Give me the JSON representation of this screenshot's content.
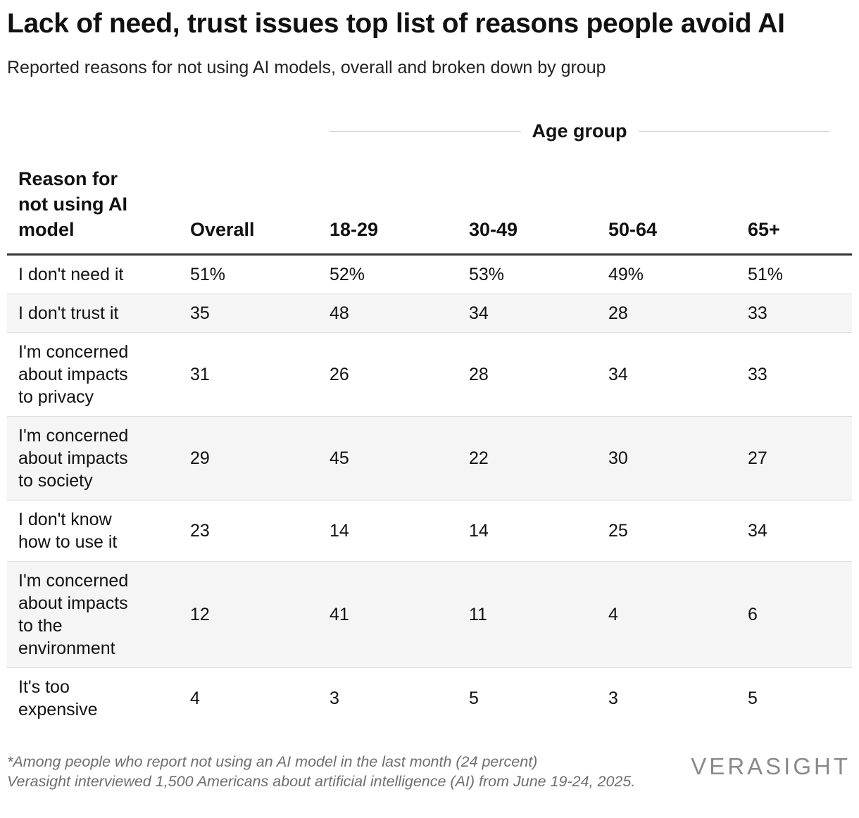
{
  "title": "Lack of need, trust issues top list of reasons people avoid AI",
  "subtitle": "Reported reasons for not using AI models, overall and broken down by group",
  "group_label": "Age group",
  "footnote_line1": "*Among people who report not using an AI model in the last month (24 percent)",
  "footnote_line2": "Verasight interviewed 1,500 Americans about artificial intelligence (AI) from June 19-24, 2025.",
  "logo_text": "VERASIGHT",
  "chart_data": {
    "type": "table",
    "columns": [
      "Reason for\nnot using AI\nmodel",
      "Overall",
      "18-29",
      "30-49",
      "50-64",
      "65+"
    ],
    "rows": [
      {
        "reason": "I don't need it",
        "values": [
          "51%",
          "52%",
          "53%",
          "49%",
          "51%"
        ]
      },
      {
        "reason": "I don't trust it",
        "values": [
          "35",
          "48",
          "34",
          "28",
          "33"
        ]
      },
      {
        "reason": "I'm concerned\nabout impacts\nto privacy",
        "values": [
          "31",
          "26",
          "28",
          "34",
          "33"
        ]
      },
      {
        "reason": "I'm concerned\nabout impacts\nto society",
        "values": [
          "29",
          "45",
          "22",
          "30",
          "27"
        ]
      },
      {
        "reason": "I don't know\nhow to use it",
        "values": [
          "23",
          "14",
          "14",
          "25",
          "34"
        ]
      },
      {
        "reason": "I'm concerned\nabout impacts\nto the\nenvironment",
        "values": [
          "12",
          "41",
          "11",
          "4",
          "6"
        ]
      },
      {
        "reason": "It's too\nexpensive",
        "values": [
          "4",
          "3",
          "5",
          "3",
          "5"
        ]
      }
    ]
  }
}
